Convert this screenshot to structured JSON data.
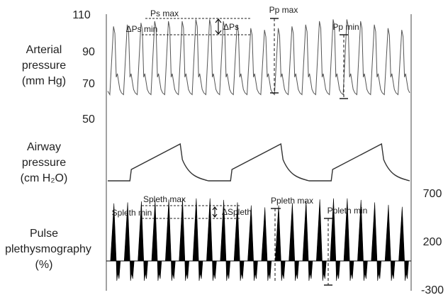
{
  "chart_data": {
    "type": "line",
    "colors": {
      "trace": "#555555",
      "ink": "#111111",
      "fill": "#000000"
    },
    "panels": [
      {
        "id": "arterial",
        "ylabel_lines": [
          "Arterial",
          "pressure",
          "(mm Hg)"
        ],
        "y_ticks": [
          110,
          90,
          70,
          50
        ],
        "ylim": [
          50,
          110
        ],
        "beats": 22,
        "peaks_mmHg": [
          103,
          104,
          105,
          106,
          106,
          106,
          107,
          107,
          106,
          104,
          102,
          101,
          102,
          103,
          104,
          106,
          107,
          107,
          106,
          104,
          102,
          101
        ],
        "trough_mmHg": 64
      },
      {
        "id": "airway",
        "ylabel_lines": [
          "Airway",
          "pressure",
          "(cm H₂O)"
        ],
        "cycles": 3
      },
      {
        "id": "pleth",
        "ylabel_lines": [
          "Pulse",
          "plethysmography",
          "(%)"
        ],
        "right_ticks": [
          700,
          200,
          -300
        ],
        "ylim": [
          -300,
          700
        ],
        "beats": 22,
        "peaks_pct": [
          580,
          590,
          600,
          610,
          620,
          625,
          630,
          630,
          615,
          590,
          560,
          540,
          560,
          585,
          605,
          620,
          630,
          630,
          615,
          590,
          565,
          545
        ]
      }
    ],
    "annotations": {
      "ps_max": "Ps max",
      "dps_min": "ΔPs min",
      "dps": "ΔPs",
      "pp_max": "Pp max",
      "pp_min": "Pp min",
      "spleth_max": "Spleth max",
      "spleth_min": "Spleth min",
      "dspleth": "ΔSpleth",
      "ppleth_max": "Ppleth max",
      "ppleth_min": "Ppleth min"
    }
  }
}
